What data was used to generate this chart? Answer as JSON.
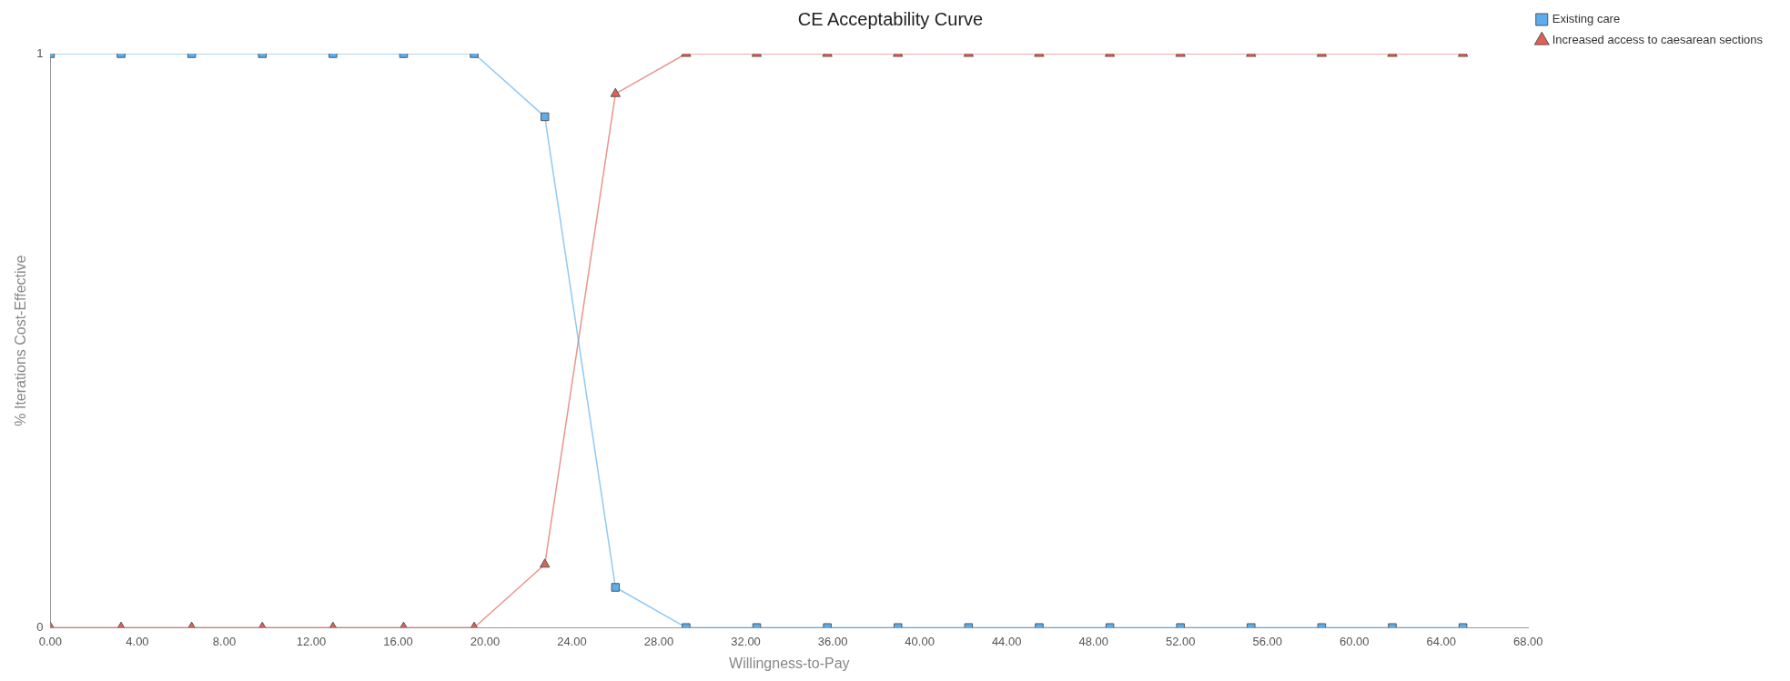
{
  "chart_data": {
    "type": "line",
    "title": "CE Acceptability Curve",
    "xlabel": "Willingness-to-Pay",
    "ylabel": "% Iterations Cost-Effective",
    "x": [
      0,
      3.25,
      6.5,
      9.75,
      13,
      16.25,
      19.5,
      22.75,
      26,
      29.25,
      32.5,
      35.75,
      39,
      42.25,
      45.5,
      48.75,
      52,
      55.25,
      58.5,
      61.75,
      65
    ],
    "series": [
      {
        "name": "Existing care",
        "color": "#5aaef0",
        "marker": "square",
        "values": [
          1,
          1,
          1,
          1,
          1,
          1,
          1,
          0.89,
          0.07,
          0,
          0,
          0,
          0,
          0,
          0,
          0,
          0,
          0,
          0,
          0,
          0
        ]
      },
      {
        "name": "Increased access to caesarean sections",
        "color": "#e06055",
        "marker": "triangle",
        "values": [
          0,
          0,
          0,
          0,
          0,
          0,
          0,
          0.11,
          0.93,
          1,
          1,
          1,
          1,
          1,
          1,
          1,
          1,
          1,
          1,
          1,
          1
        ]
      }
    ],
    "xlim": [
      0,
      68
    ],
    "xticks": [
      {
        "value": 0,
        "label": "0.00"
      },
      {
        "value": 4,
        "label": "4.00"
      },
      {
        "value": 8,
        "label": "8.00"
      },
      {
        "value": 12,
        "label": "12.00"
      },
      {
        "value": 16,
        "label": "16.00"
      },
      {
        "value": 20,
        "label": "20.00"
      },
      {
        "value": 24,
        "label": "24.00"
      },
      {
        "value": 28,
        "label": "28.00"
      },
      {
        "value": 32,
        "label": "32.00"
      },
      {
        "value": 36,
        "label": "36.00"
      },
      {
        "value": 40,
        "label": "40.00"
      },
      {
        "value": 44,
        "label": "44.00"
      },
      {
        "value": 48,
        "label": "48.00"
      },
      {
        "value": 52,
        "label": "52.00"
      },
      {
        "value": 56,
        "label": "56.00"
      },
      {
        "value": 60,
        "label": "60.00"
      },
      {
        "value": 64,
        "label": "64.00"
      },
      {
        "value": 68,
        "label": "68.00"
      }
    ],
    "ylim": [
      0,
      1
    ],
    "yticks": [
      0,
      1
    ],
    "grid": false,
    "legend": "top right",
    "line_style": "solid"
  }
}
